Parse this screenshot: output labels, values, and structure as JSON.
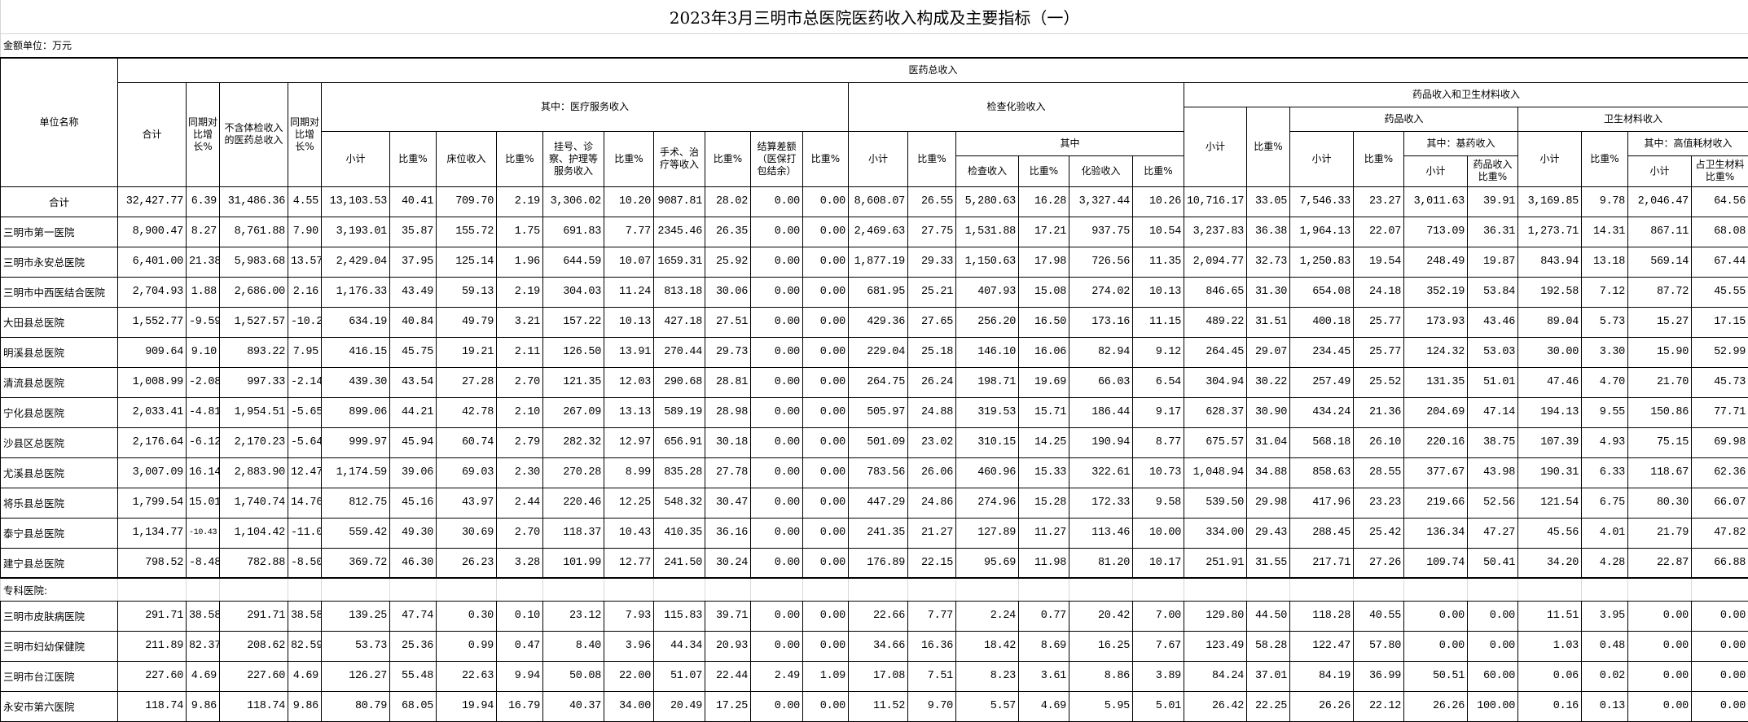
{
  "title": "2023年3月三明市总医院医药收入构成及主要指标（一）",
  "unit_label": "金额单位：万元",
  "headers": {
    "unit_name": "单位名称",
    "total_income": "医药总收入",
    "total": "合计",
    "yoy_growth": "同期对比增长%",
    "excl_checkup": "不含体检收入的医药总收入",
    "yoy_growth2": "同期对比增长%",
    "medical_service": "其中：医疗服务收入",
    "exam_lab": "检查化验收入",
    "drug_material": "药品收入和卫生材料收入",
    "drug_income": "药品收入",
    "material_income": "卫生材料收入",
    "subtotal": "小计",
    "ratio": "比重%",
    "bed": "床位收入",
    "registration": "挂号、诊察、护理等服务收入",
    "surgery": "手术、治疗等收入",
    "settlement": "结算差额（医保打包结余）",
    "of_which": "其中",
    "exam": "检查收入",
    "lab": "化验收入",
    "essential_drug": "其中：基药收入",
    "drug_ratio": "药品收入比重%",
    "high_value": "其中：高值耗材收入",
    "material_ratio": "占卫生材料比重%"
  },
  "section_label": "专科医院:",
  "total_row": {
    "name": "合计",
    "values": [
      "32,427.77",
      "6.39",
      "31,486.36",
      "4.55",
      "13,103.53",
      "40.41",
      "709.70",
      "2.19",
      "3,306.02",
      "10.20",
      "9087.81",
      "28.02",
      "0.00",
      "0.00",
      "8,608.07",
      "26.55",
      "5,280.63",
      "16.28",
      "3,327.44",
      "10.26",
      "10,716.17",
      "33.05",
      "7,546.33",
      "23.27",
      "3,011.63",
      "39.91",
      "3,169.85",
      "9.78",
      "2,046.47",
      "64.56"
    ]
  },
  "rows": [
    {
      "name": "三明市第一医院",
      "values": [
        "8,900.47",
        "8.27",
        "8,761.88",
        "7.90",
        "3,193.01",
        "35.87",
        "155.72",
        "1.75",
        "691.83",
        "7.77",
        "2345.46",
        "26.35",
        "0.00",
        "0.00",
        "2,469.63",
        "27.75",
        "1,531.88",
        "17.21",
        "937.75",
        "10.54",
        "3,237.83",
        "36.38",
        "1,964.13",
        "22.07",
        "713.09",
        "36.31",
        "1,273.71",
        "14.31",
        "867.11",
        "68.08"
      ]
    },
    {
      "name": "三明市永安总医院",
      "values": [
        "6,401.00",
        "21.38",
        "5,983.68",
        "13.57",
        "2,429.04",
        "37.95",
        "125.14",
        "1.96",
        "644.59",
        "10.07",
        "1659.31",
        "25.92",
        "0.00",
        "0.00",
        "1,877.19",
        "29.33",
        "1,150.63",
        "17.98",
        "726.56",
        "11.35",
        "2,094.77",
        "32.73",
        "1,250.83",
        "19.54",
        "248.49",
        "19.87",
        "843.94",
        "13.18",
        "569.14",
        "67.44"
      ]
    },
    {
      "name": "三明市中西医结合医院",
      "values": [
        "2,704.93",
        "1.88",
        "2,686.00",
        "2.16",
        "1,176.33",
        "43.49",
        "59.13",
        "2.19",
        "304.03",
        "11.24",
        "813.18",
        "30.06",
        "0.00",
        "0.00",
        "681.95",
        "25.21",
        "407.93",
        "15.08",
        "274.02",
        "10.13",
        "846.65",
        "31.30",
        "654.08",
        "24.18",
        "352.19",
        "53.84",
        "192.58",
        "7.12",
        "87.72",
        "45.55"
      ]
    },
    {
      "name": "大田县总医院",
      "values": [
        "1,552.77",
        "-9.59",
        "1,527.57",
        "-10.23",
        "634.19",
        "40.84",
        "49.79",
        "3.21",
        "157.22",
        "10.13",
        "427.18",
        "27.51",
        "0.00",
        "0.00",
        "429.36",
        "27.65",
        "256.20",
        "16.50",
        "173.16",
        "11.15",
        "489.22",
        "31.51",
        "400.18",
        "25.77",
        "173.93",
        "43.46",
        "89.04",
        "5.73",
        "15.27",
        "17.15"
      ]
    },
    {
      "name": "明溪县总医院",
      "values": [
        "909.64",
        "9.10",
        "893.22",
        "7.95",
        "416.15",
        "45.75",
        "19.21",
        "2.11",
        "126.50",
        "13.91",
        "270.44",
        "29.73",
        "0.00",
        "0.00",
        "229.04",
        "25.18",
        "146.10",
        "16.06",
        "82.94",
        "9.12",
        "264.45",
        "29.07",
        "234.45",
        "25.77",
        "124.32",
        "53.03",
        "30.00",
        "3.30",
        "15.90",
        "52.99"
      ]
    },
    {
      "name": "清流县总医院",
      "values": [
        "1,008.99",
        "-2.08",
        "997.33",
        "-2.14",
        "439.30",
        "43.54",
        "27.28",
        "2.70",
        "121.35",
        "12.03",
        "290.68",
        "28.81",
        "0.00",
        "0.00",
        "264.75",
        "26.24",
        "198.71",
        "19.69",
        "66.03",
        "6.54",
        "304.94",
        "30.22",
        "257.49",
        "25.52",
        "131.35",
        "51.01",
        "47.46",
        "4.70",
        "21.70",
        "45.73"
      ]
    },
    {
      "name": "宁化县总医院",
      "values": [
        "2,033.41",
        "-4.81",
        "1,954.51",
        "-5.65",
        "899.06",
        "44.21",
        "42.78",
        "2.10",
        "267.09",
        "13.13",
        "589.19",
        "28.98",
        "0.00",
        "0.00",
        "505.97",
        "24.88",
        "319.53",
        "15.71",
        "186.44",
        "9.17",
        "628.37",
        "30.90",
        "434.24",
        "21.36",
        "204.69",
        "47.14",
        "194.13",
        "9.55",
        "150.86",
        "77.71"
      ]
    },
    {
      "name": "沙县区总医院",
      "values": [
        "2,176.64",
        "-6.12",
        "2,170.23",
        "-5.64",
        "999.97",
        "45.94",
        "60.74",
        "2.79",
        "282.32",
        "12.97",
        "656.91",
        "30.18",
        "0.00",
        "0.00",
        "501.09",
        "23.02",
        "310.15",
        "14.25",
        "190.94",
        "8.77",
        "675.57",
        "31.04",
        "568.18",
        "26.10",
        "220.16",
        "38.75",
        "107.39",
        "4.93",
        "75.15",
        "69.98"
      ]
    },
    {
      "name": "尤溪县总医院",
      "values": [
        "3,007.09",
        "16.14",
        "2,883.90",
        "12.47",
        "1,174.59",
        "39.06",
        "69.03",
        "2.30",
        "270.28",
        "8.99",
        "835.28",
        "27.78",
        "0.00",
        "0.00",
        "783.56",
        "26.06",
        "460.96",
        "15.33",
        "322.61",
        "10.73",
        "1,048.94",
        "34.88",
        "858.63",
        "28.55",
        "377.67",
        "43.98",
        "190.31",
        "6.33",
        "118.67",
        "62.36"
      ]
    },
    {
      "name": "将乐县总医院",
      "values": [
        "1,799.54",
        "15.01",
        "1,740.74",
        "14.76",
        "812.75",
        "45.16",
        "43.97",
        "2.44",
        "220.46",
        "12.25",
        "548.32",
        "30.47",
        "0.00",
        "0.00",
        "447.29",
        "24.86",
        "274.96",
        "15.28",
        "172.33",
        "9.58",
        "539.50",
        "29.98",
        "417.96",
        "23.23",
        "219.66",
        "52.56",
        "121.54",
        "6.75",
        "80.30",
        "66.07"
      ]
    },
    {
      "name": "泰宁县总医院",
      "values": [
        "1,134.77",
        "-10.43",
        "1,104.42",
        "-11.00",
        "559.42",
        "49.30",
        "30.69",
        "2.70",
        "118.37",
        "10.43",
        "410.35",
        "36.16",
        "0.00",
        "0.00",
        "241.35",
        "21.27",
        "127.89",
        "11.27",
        "113.46",
        "10.00",
        "334.00",
        "29.43",
        "288.45",
        "25.42",
        "136.34",
        "47.27",
        "45.56",
        "4.01",
        "21.79",
        "47.82"
      ]
    },
    {
      "name": "建宁县总医院",
      "values": [
        "798.52",
        "-8.48",
        "782.88",
        "-8.50",
        "369.72",
        "46.30",
        "26.23",
        "3.28",
        "101.99",
        "12.77",
        "241.50",
        "30.24",
        "0.00",
        "0.00",
        "176.89",
        "22.15",
        "95.69",
        "11.98",
        "81.20",
        "10.17",
        "251.91",
        "31.55",
        "217.71",
        "27.26",
        "109.74",
        "50.41",
        "34.20",
        "4.28",
        "22.87",
        "66.88"
      ]
    }
  ],
  "specialty_rows": [
    {
      "name": "三明市皮肤病医院",
      "values": [
        "291.71",
        "38.58",
        "291.71",
        "38.58",
        "139.25",
        "47.74",
        "0.30",
        "0.10",
        "23.12",
        "7.93",
        "115.83",
        "39.71",
        "0.00",
        "0.00",
        "22.66",
        "7.77",
        "2.24",
        "0.77",
        "20.42",
        "7.00",
        "129.80",
        "44.50",
        "118.28",
        "40.55",
        "0.00",
        "0.00",
        "11.51",
        "3.95",
        "0.00",
        "0.00"
      ]
    },
    {
      "name": "三明市妇幼保健院",
      "values": [
        "211.89",
        "82.37",
        "208.62",
        "82.59",
        "53.73",
        "25.36",
        "0.99",
        "0.47",
        "8.40",
        "3.96",
        "44.34",
        "20.93",
        "0.00",
        "0.00",
        "34.66",
        "16.36",
        "18.42",
        "8.69",
        "16.25",
        "7.67",
        "123.49",
        "58.28",
        "122.47",
        "57.80",
        "0.00",
        "0.00",
        "1.03",
        "0.48",
        "0.00",
        "0.00"
      ]
    },
    {
      "name": "三明市台江医院",
      "values": [
        "227.60",
        "4.69",
        "227.60",
        "4.69",
        "126.27",
        "55.48",
        "22.63",
        "9.94",
        "50.08",
        "22.00",
        "51.07",
        "22.44",
        "2.49",
        "1.09",
        "17.08",
        "7.51",
        "8.23",
        "3.61",
        "8.86",
        "3.89",
        "84.24",
        "37.01",
        "84.19",
        "36.99",
        "50.51",
        "60.00",
        "0.06",
        "0.02",
        "0.00",
        "0.00"
      ]
    },
    {
      "name": "永安市第六医院",
      "values": [
        "118.74",
        "9.86",
        "118.74",
        "9.86",
        "80.79",
        "68.05",
        "19.94",
        "16.79",
        "40.37",
        "34.00",
        "20.49",
        "17.25",
        "0.00",
        "0.00",
        "11.52",
        "9.70",
        "5.57",
        "4.69",
        "5.95",
        "5.01",
        "26.42",
        "22.25",
        "26.26",
        "22.12",
        "26.26",
        "100.00",
        "0.16",
        "0.13",
        "0.00",
        "0.00"
      ]
    }
  ]
}
